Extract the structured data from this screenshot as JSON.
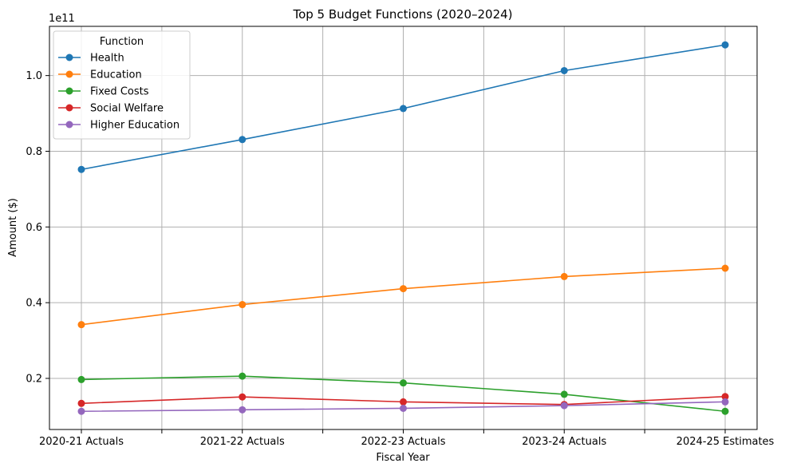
{
  "chart_data": {
    "type": "line",
    "title": "Top 5 Budget Functions (2020–2024)",
    "xlabel": "Fiscal Year",
    "ylabel": "Amount ($)",
    "y_offset_label": "1e11",
    "categories": [
      "2020-21  Actuals",
      "2021-22  Actuals",
      "2022-23  Actuals",
      "2023-24  Actuals",
      "2024-25  Estimates"
    ],
    "ylim": [
      0.065,
      1.13
    ],
    "y_scale": 100000000000,
    "y_ticks": [
      0.2,
      0.4,
      0.6,
      0.8,
      1.0
    ],
    "y_tick_labels": [
      "0.2",
      "0.4",
      "0.6",
      "0.8",
      "1.0"
    ],
    "grid": true,
    "legend_title": "Function",
    "legend_position": "upper-left",
    "series": [
      {
        "name": "Health",
        "color": "#1f77b4",
        "values": [
          0.752,
          0.831,
          0.913,
          1.013,
          1.081
        ]
      },
      {
        "name": "Education",
        "color": "#ff7f0e",
        "values": [
          0.342,
          0.395,
          0.437,
          0.469,
          0.491
        ]
      },
      {
        "name": "Fixed Costs",
        "color": "#2ca02c",
        "values": [
          0.197,
          0.206,
          0.188,
          0.158,
          0.113
        ]
      },
      {
        "name": "Social Welfare",
        "color": "#d62728",
        "values": [
          0.134,
          0.151,
          0.138,
          0.131,
          0.152
        ]
      },
      {
        "name": "Higher Education",
        "color": "#9467bd",
        "values": [
          0.113,
          0.117,
          0.121,
          0.128,
          0.138
        ]
      }
    ]
  }
}
